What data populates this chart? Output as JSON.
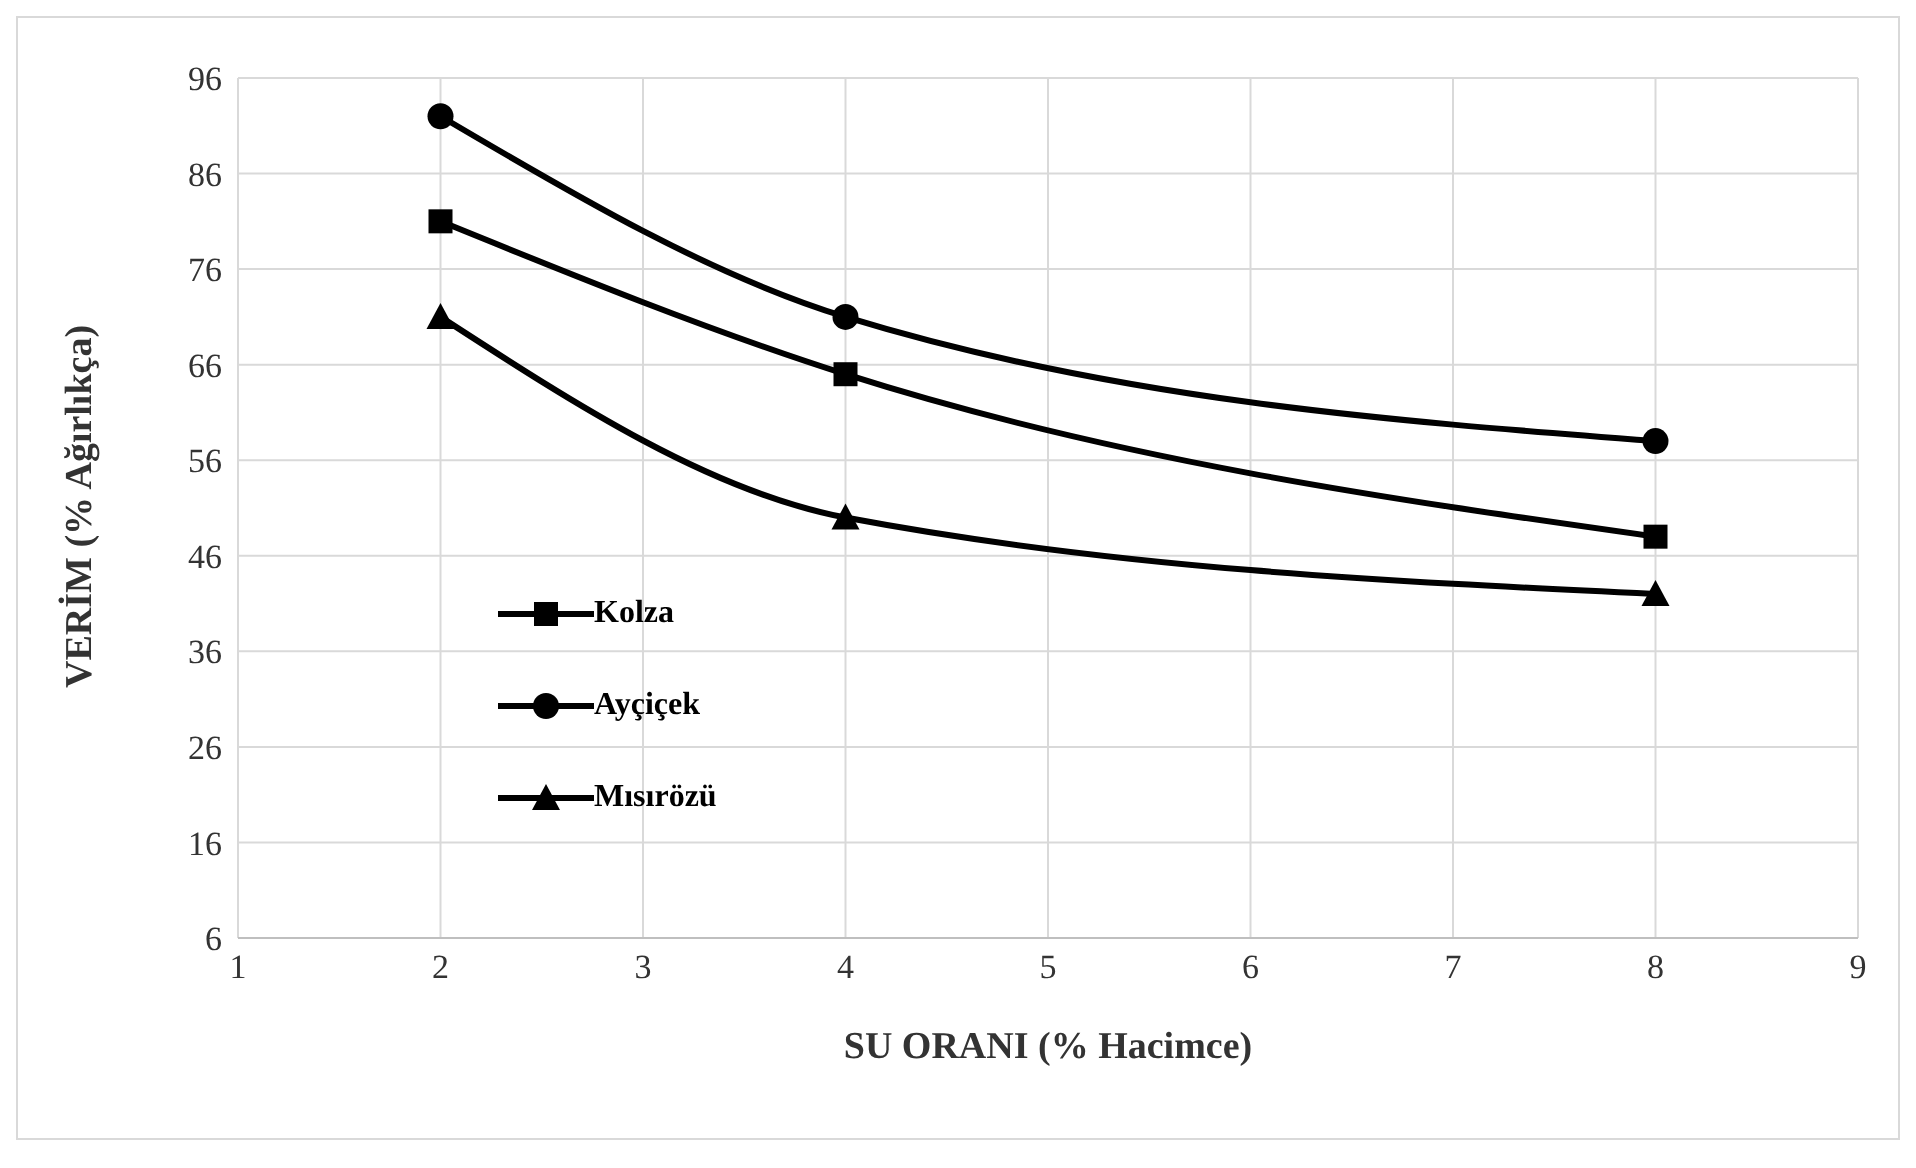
{
  "chart_data": {
    "type": "line",
    "xlabel": "SU ORANI (% Hacimce)",
    "ylabel": "VERİM (% Ağırlıkça)",
    "x": [
      2,
      4,
      8
    ],
    "series": [
      {
        "name": "Kolza",
        "color": "#000000",
        "values": [
          81,
          65,
          48
        ],
        "marker": "square"
      },
      {
        "name": "Ayçiçek",
        "color": "#000000",
        "values": [
          92,
          71,
          58
        ],
        "marker": "circle"
      },
      {
        "name": "Mısırözü",
        "color": "#000000",
        "values": [
          71,
          50,
          42
        ],
        "marker": "triangle"
      }
    ],
    "xlim": [
      1,
      9
    ],
    "xticks": [
      1,
      2,
      3,
      4,
      5,
      6,
      7,
      8,
      9
    ],
    "ylim": [
      6,
      96
    ],
    "yticks": [
      6,
      16,
      26,
      36,
      46,
      56,
      66,
      76,
      86,
      96
    ],
    "grid": true,
    "legend": "left",
    "line_style": "solid"
  }
}
